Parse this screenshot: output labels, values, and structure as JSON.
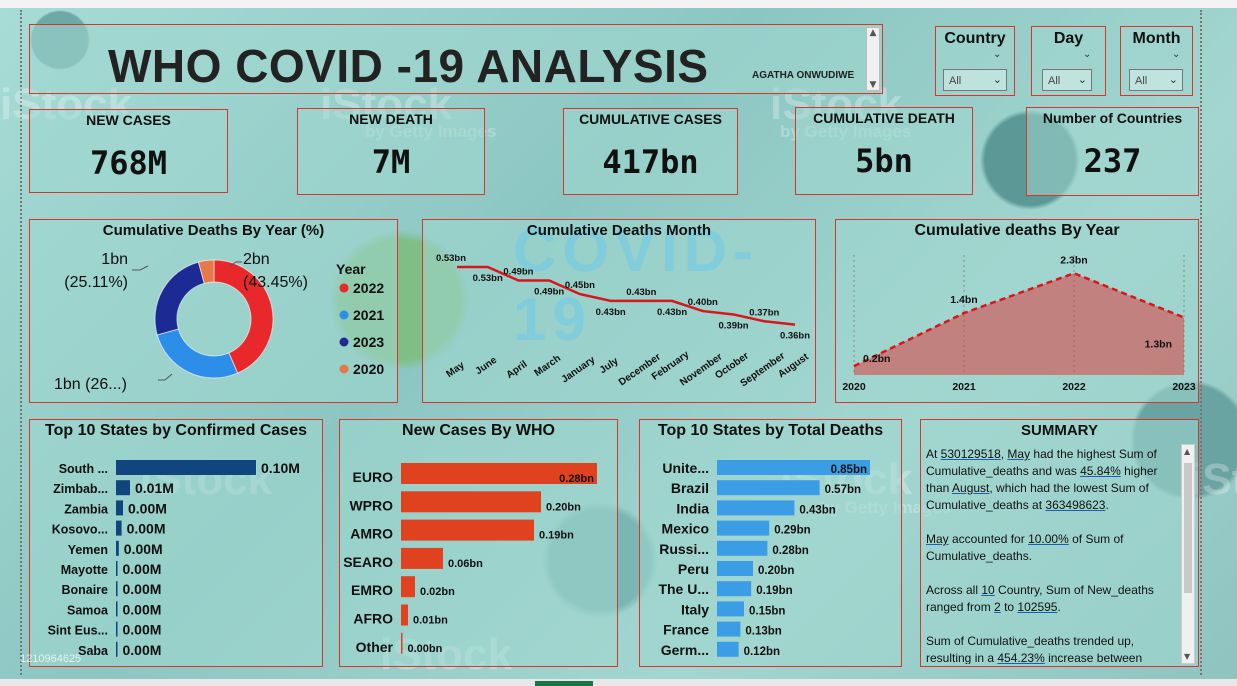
{
  "title": "WHO COVID -19 ANALYSIS",
  "author": "AGATHA ONWUDIWE",
  "slicers": [
    {
      "label": "Country",
      "value": "All"
    },
    {
      "label": "Day",
      "value": "All"
    },
    {
      "label": "Month",
      "value": "All"
    }
  ],
  "kpis": [
    {
      "label": "NEW CASES",
      "value": "768M"
    },
    {
      "label": "NEW DEATH",
      "value": "7M"
    },
    {
      "label": "CUMULATIVE CASES",
      "value": "417bn"
    },
    {
      "label": "CUMULATIVE DEATH",
      "value": "5bn"
    },
    {
      "label": "Number of Countries",
      "value": "237"
    }
  ],
  "colors": {
    "red": "#e8282b",
    "light_blue": "#2c8ee8",
    "navy": "#1c2a93",
    "orange": "#e6794a",
    "bar_navy": "#10457e",
    "bar_orange": "#e0421f",
    "bar_blue": "#3b9de6"
  },
  "chart_data": [
    {
      "type": "pie",
      "title": "Cumulative Deaths By Year (%)",
      "legend_title": "Year",
      "legend_position": "right",
      "slices": [
        {
          "name": "2022",
          "value": 43.45,
          "label": "2bn",
          "sublabel": "(43.45%)",
          "color": "#e8282b"
        },
        {
          "name": "2021",
          "value": 27.2,
          "label": "1bn (26...)",
          "sublabel": "",
          "color": "#2c8ee8"
        },
        {
          "name": "2023",
          "value": 25.11,
          "label": "1bn",
          "sublabel": "(25.11%)",
          "color": "#1c2a93"
        },
        {
          "name": "2020",
          "value": 4.24,
          "label": "",
          "sublabel": "",
          "color": "#e6794a"
        }
      ]
    },
    {
      "type": "line",
      "title": "Cumulative Deaths Month",
      "categories": [
        "May",
        "June",
        "April",
        "March",
        "January",
        "July",
        "December",
        "February",
        "November",
        "October",
        "September",
        "August"
      ],
      "values": [
        0.53,
        0.53,
        0.49,
        0.49,
        0.45,
        0.43,
        0.43,
        0.43,
        0.4,
        0.39,
        0.37,
        0.36
      ],
      "labels": [
        "0.53bn",
        "0.53bn",
        "0.49bn",
        "0.49bn",
        "0.45bn",
        "0.43bn",
        "0.43bn",
        "0.43bn",
        "0.40bn",
        "0.39bn",
        "0.37bn",
        "0.36bn"
      ],
      "ylim": [
        0.3,
        0.58
      ],
      "color": "#d9151b"
    },
    {
      "type": "area",
      "title": "Cumulative deaths By Year",
      "categories": [
        "2020",
        "2021",
        "2022",
        "2023"
      ],
      "values": [
        0.2,
        1.4,
        2.3,
        1.3
      ],
      "labels": [
        "0.2bn",
        "1.4bn",
        "2.3bn",
        "1.3bn"
      ],
      "ylim": [
        0,
        2.6
      ],
      "color": "#d9151b"
    },
    {
      "type": "bar",
      "title": "Top 10 States by Confirmed Cases",
      "categories": [
        "South ...",
        "Zimbab...",
        "Zambia",
        "Kosovo...",
        "Yemen",
        "Mayotte",
        "Bonaire",
        "Samoa",
        "Sint Eus...",
        "Saba"
      ],
      "values": [
        0.1,
        0.01,
        0.005,
        0.004,
        0.002,
        0.0005,
        0.0004,
        0.0004,
        0.0003,
        0.0003
      ],
      "labels": [
        "0.10M",
        "0.01M",
        "0.00M",
        "0.00M",
        "0.00M",
        "0.00M",
        "0.00M",
        "0.00M",
        "0.00M",
        "0.00M"
      ],
      "color": "#10457e"
    },
    {
      "type": "bar",
      "title": "New Cases By WHO",
      "categories": [
        "EURO",
        "WPRO",
        "AMRO",
        "SEARO",
        "EMRO",
        "AFRO",
        "Other"
      ],
      "values": [
        0.28,
        0.2,
        0.19,
        0.06,
        0.02,
        0.01,
        0.001
      ],
      "labels": [
        "0.28bn",
        "0.20bn",
        "0.19bn",
        "0.06bn",
        "0.02bn",
        "0.01bn",
        "0.00bn"
      ],
      "color": "#e0421f"
    },
    {
      "type": "bar",
      "title": "Top 10 States by Total Deaths",
      "categories": [
        "Unite...",
        "Brazil",
        "India",
        "Mexico",
        "Russi...",
        "Peru",
        "The U...",
        "Italy",
        "France",
        "Germ..."
      ],
      "values": [
        0.85,
        0.57,
        0.43,
        0.29,
        0.28,
        0.2,
        0.19,
        0.15,
        0.13,
        0.12
      ],
      "labels": [
        "0.85bn",
        "0.57bn",
        "0.43bn",
        "0.29bn",
        "0.28bn",
        "0.20bn",
        "0.19bn",
        "0.15bn",
        "0.13bn",
        "0.12bn"
      ],
      "color": "#3b9de6"
    }
  ],
  "summary": {
    "title": "SUMMARY",
    "p1": {
      "a": "At ",
      "v1": "530129518",
      "b": ", ",
      "v2": "May",
      "c": " had the highest Sum of Cumulative_deaths and was ",
      "v3": "45.84%",
      "d": " higher than ",
      "v4": "August",
      "e": ", which had the lowest Sum of Cumulative_deaths at ",
      "v5": "363498623",
      "f": "."
    },
    "p2": {
      "v1": "May",
      "a": " accounted for ",
      "v2": "10.00%",
      "b": " of Sum of Cumulative_deaths."
    },
    "p3": {
      "a": "Across all ",
      "v1": "10",
      "b": " Country, Sum of New_deaths ranged from ",
      "v2": "2",
      "c": " to ",
      "v3": "102595",
      "d": "."
    },
    "p4": {
      "a": "Sum of Cumulative_deaths trended up, resulting in a ",
      "v1": "454.23%",
      "b": " increase between"
    }
  },
  "watermark": "iStock",
  "watermark_sub": "by Getty Images",
  "image_id": "1210964625"
}
